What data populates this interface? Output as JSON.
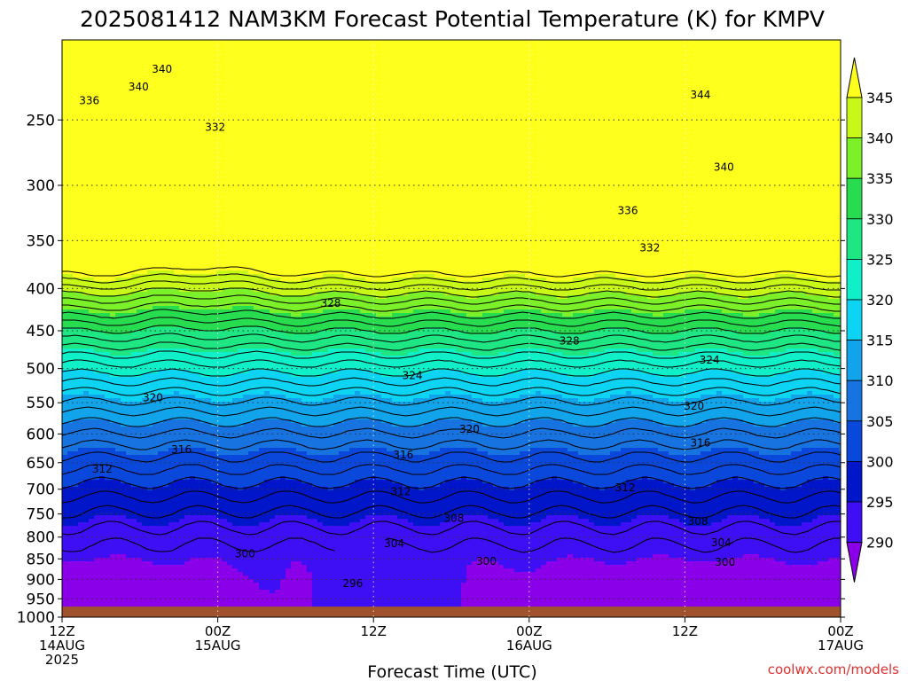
{
  "chart_data": {
    "type": "heatmap",
    "title": "2025081412 NAM3KM Forecast Potential Temperature (K) for KMPV",
    "xlabel": "Forecast Time (UTC)",
    "ylabel": "",
    "y_ticks": [
      250,
      300,
      350,
      400,
      450,
      500,
      550,
      600,
      650,
      700,
      750,
      800,
      850,
      900,
      950,
      1000
    ],
    "x_ticks": [
      {
        "hour": 0,
        "l1": "12Z",
        "l2": "14AUG",
        "l3": "2025"
      },
      {
        "hour": 12,
        "l1": "00Z",
        "l2": "15AUG",
        "l3": ""
      },
      {
        "hour": 24,
        "l1": "12Z",
        "l2": "",
        "l3": ""
      },
      {
        "hour": 36,
        "l1": "00Z",
        "l2": "16AUG",
        "l3": ""
      },
      {
        "hour": 48,
        "l1": "12Z",
        "l2": "",
        "l3": ""
      },
      {
        "hour": 60,
        "l1": "00Z",
        "l2": "17AUG",
        "l3": ""
      }
    ],
    "xlim": [
      0,
      60
    ],
    "ylim": [
      1000,
      200
    ],
    "y_scale": "log",
    "grid": true,
    "surface_pressure": 971,
    "colorbar": {
      "levels": [
        290,
        295,
        300,
        305,
        310,
        315,
        320,
        325,
        330,
        335,
        340,
        345
      ],
      "colors": [
        "#8a00e8",
        "#3e0ef5",
        "#0016c8",
        "#0a48dc",
        "#1673e0",
        "#12a4ea",
        "#0cd4f2",
        "#10f0c8",
        "#1ee682",
        "#28dc50",
        "#7cf028",
        "#c8f818",
        "#ffff1e"
      ]
    },
    "contour_labels": [
      {
        "value": "340",
        "x": 7.7,
        "p": 217
      },
      {
        "value": "340",
        "x": 5.9,
        "p": 228
      },
      {
        "value": "336",
        "x": 2.1,
        "p": 237
      },
      {
        "value": "332",
        "x": 11.8,
        "p": 255
      },
      {
        "value": "344",
        "x": 49.2,
        "p": 233
      },
      {
        "value": "340",
        "x": 51.0,
        "p": 285
      },
      {
        "value": "336",
        "x": 43.6,
        "p": 322
      },
      {
        "value": "332",
        "x": 45.3,
        "p": 357
      },
      {
        "value": "328",
        "x": 20.7,
        "p": 417
      },
      {
        "value": "328",
        "x": 39.1,
        "p": 463
      },
      {
        "value": "324",
        "x": 27.0,
        "p": 510
      },
      {
        "value": "324",
        "x": 49.9,
        "p": 488
      },
      {
        "value": "320",
        "x": 7.0,
        "p": 542
      },
      {
        "value": "320",
        "x": 48.7,
        "p": 555
      },
      {
        "value": "320",
        "x": 31.4,
        "p": 592
      },
      {
        "value": "316",
        "x": 9.2,
        "p": 627
      },
      {
        "value": "316",
        "x": 26.3,
        "p": 636
      },
      {
        "value": "316",
        "x": 49.2,
        "p": 615
      },
      {
        "value": "312",
        "x": 3.1,
        "p": 662
      },
      {
        "value": "312",
        "x": 26.1,
        "p": 705
      },
      {
        "value": "312",
        "x": 43.4,
        "p": 697
      },
      {
        "value": "308",
        "x": 30.2,
        "p": 759
      },
      {
        "value": "308",
        "x": 49.0,
        "p": 766
      },
      {
        "value": "304",
        "x": 25.6,
        "p": 814
      },
      {
        "value": "304",
        "x": 50.8,
        "p": 812
      },
      {
        "value": "300",
        "x": 14.1,
        "p": 838
      },
      {
        "value": "300",
        "x": 32.7,
        "p": 856
      },
      {
        "value": "300",
        "x": 51.1,
        "p": 858
      },
      {
        "value": "296",
        "x": 22.4,
        "p": 910
      }
    ]
  },
  "watermark": "coolwx.com/models"
}
